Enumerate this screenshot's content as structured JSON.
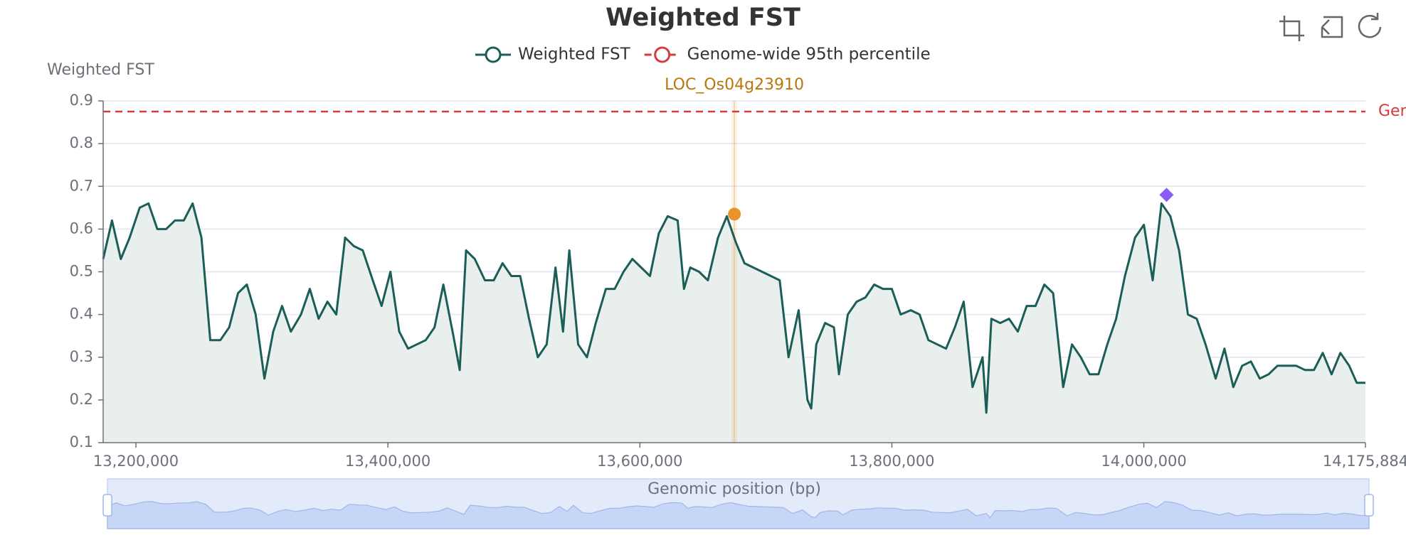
{
  "chart_data": {
    "type": "line",
    "title": "Weighted FST",
    "y_label": "Weighted FST",
    "x_label": "Genomic position (bp)",
    "xlim": [
      13174000,
      14175884
    ],
    "ylim": [
      0.1,
      0.9
    ],
    "xticks": [
      {
        "value": 13200000,
        "label": "13,200,000"
      },
      {
        "value": 13400000,
        "label": "13,400,000"
      },
      {
        "value": 13600000,
        "label": "13,600,000"
      },
      {
        "value": 13800000,
        "label": "13,800,000"
      },
      {
        "value": 14000000,
        "label": "14,000,000"
      },
      {
        "value": 14175884,
        "label": "14,175,884"
      }
    ],
    "yticks": [
      0.1,
      0.2,
      0.3,
      0.4,
      0.5,
      0.6,
      0.7,
      0.8,
      0.9
    ],
    "grid": true,
    "x": [
      13174000,
      13181000,
      13188000,
      13195000,
      13203000,
      13210000,
      13217000,
      13224000,
      13231000,
      13238000,
      13245000,
      13252000,
      13259000,
      13267000,
      13274000,
      13281000,
      13288000,
      13295000,
      13302000,
      13309000,
      13316000,
      13323000,
      13331000,
      13338000,
      13345000,
      13352000,
      13359000,
      13366000,
      13373000,
      13380000,
      13388000,
      13395000,
      13402000,
      13409000,
      13416000,
      13423000,
      13430000,
      13437000,
      13444000,
      13452000,
      13457000,
      13462000,
      13469000,
      13477000,
      13484000,
      13491000,
      13498000,
      13505000,
      13512000,
      13519000,
      13526000,
      13533000,
      13539000,
      13544000,
      13551000,
      13558000,
      13565000,
      13573000,
      13580000,
      13587000,
      13594000,
      13601000,
      13608000,
      13615000,
      13622000,
      13630000,
      13635000,
      13640000,
      13647000,
      13654000,
      13662000,
      13669000,
      13676000,
      13683000,
      13690000,
      13697000,
      13704000,
      13711000,
      13718000,
      13726000,
      13733000,
      13736000,
      13740000,
      13747000,
      13754000,
      13758000,
      13765000,
      13772000,
      13779000,
      13786000,
      13793000,
      13800000,
      13807000,
      13815000,
      13822000,
      13829000,
      13836000,
      13843000,
      13850000,
      13857000,
      13864000,
      13872000,
      13875000,
      13879000,
      13886000,
      13893000,
      13900000,
      13907000,
      13914000,
      13921000,
      13928000,
      13936000,
      13943000,
      13950000,
      13957000,
      13964000,
      13971000,
      13978000,
      13985000,
      13993000,
      14000000,
      14007000,
      14014000,
      14021000,
      14028000,
      14035000,
      14042000,
      14049000,
      14057000,
      14064000,
      14071000,
      14078000,
      14085000,
      14092000,
      14099000,
      14106000,
      14114000,
      14121000,
      14128000,
      14135000,
      14142000,
      14149000,
      14156000,
      14163000,
      14169000,
      14175884
    ],
    "series": [
      {
        "name": "Weighted FST",
        "color": "#1b5e57",
        "fill": "#e9efed",
        "values": [
          0.53,
          0.62,
          0.53,
          0.58,
          0.65,
          0.66,
          0.6,
          0.6,
          0.62,
          0.62,
          0.66,
          0.58,
          0.34,
          0.34,
          0.37,
          0.45,
          0.47,
          0.4,
          0.25,
          0.36,
          0.42,
          0.36,
          0.4,
          0.46,
          0.39,
          0.43,
          0.4,
          0.58,
          0.56,
          0.55,
          0.48,
          0.42,
          0.5,
          0.36,
          0.32,
          0.33,
          0.34,
          0.37,
          0.47,
          0.35,
          0.27,
          0.55,
          0.53,
          0.48,
          0.48,
          0.52,
          0.49,
          0.49,
          0.39,
          0.3,
          0.33,
          0.51,
          0.36,
          0.55,
          0.33,
          0.3,
          0.38,
          0.46,
          0.46,
          0.5,
          0.53,
          0.51,
          0.49,
          0.59,
          0.63,
          0.62,
          0.46,
          0.51,
          0.5,
          0.48,
          0.58,
          0.63,
          0.57,
          0.52,
          0.51,
          0.5,
          0.49,
          0.48,
          0.3,
          0.41,
          0.2,
          0.18,
          0.33,
          0.38,
          0.37,
          0.26,
          0.4,
          0.43,
          0.44,
          0.47,
          0.46,
          0.46,
          0.4,
          0.41,
          0.4,
          0.34,
          0.33,
          0.32,
          0.37,
          0.43,
          0.23,
          0.3,
          0.17,
          0.39,
          0.38,
          0.39,
          0.36,
          0.42,
          0.42,
          0.47,
          0.45,
          0.23,
          0.33,
          0.3,
          0.26,
          0.26,
          0.33,
          0.39,
          0.49,
          0.58,
          0.61,
          0.48,
          0.66,
          0.63,
          0.55,
          0.4,
          0.39,
          0.33,
          0.25,
          0.32,
          0.23,
          0.28,
          0.29,
          0.25,
          0.26,
          0.28,
          0.28,
          0.28,
          0.27,
          0.27,
          0.31,
          0.26,
          0.31,
          0.28,
          0.24,
          0.24
        ]
      },
      {
        "name": "Genome-wide 95th percentile",
        "color": "#d63a3a",
        "value": 0.875
      }
    ],
    "gene_marker": {
      "label": "LOC_Os04g23910",
      "x": 13675000,
      "value": 0.635,
      "color": "#e8942a"
    },
    "peak_marker": {
      "x": 14018000,
      "value": 0.68,
      "color": "#8b5cf6"
    }
  }
}
